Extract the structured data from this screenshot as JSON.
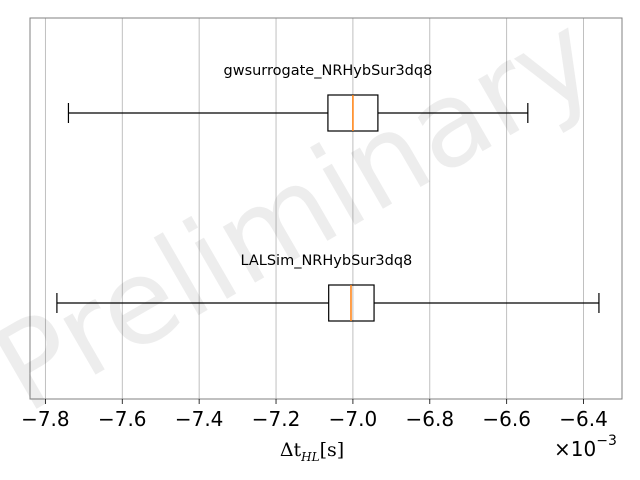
{
  "chart_data": {
    "type": "boxplot",
    "orientation": "horizontal",
    "series": [
      {
        "name": "gwsurrogate_NRHybSur3dq8",
        "whisker_low": -7.74,
        "q1": -7.065,
        "median": -7.0,
        "q3": -6.935,
        "whisker_high": -6.545
      },
      {
        "name": "LALSim_NRHybSur3dq8",
        "whisker_low": -7.77,
        "q1": -7.063,
        "median": -7.005,
        "q3": -6.945,
        "whisker_high": -6.36
      }
    ],
    "xlim": [
      -7.84,
      -6.3
    ],
    "xticks": [
      -7.8,
      -7.6,
      -7.4,
      -7.2,
      -7.0,
      -6.8,
      -6.6,
      -6.4
    ],
    "xtick_labels": [
      "−7.8",
      "−7.6",
      "−7.4",
      "−7.2",
      "−7.0",
      "−6.8",
      "−6.6",
      "−6.4"
    ],
    "xlabel": {
      "base": "Δt",
      "subscript": "HL",
      "unit": "[s]"
    },
    "offset_text": {
      "base": "×10",
      "exponent": "−3"
    },
    "grid": "vertical",
    "watermark": "Preliminary",
    "colors": {
      "box": "#000000",
      "median": "#ff7f0e",
      "grid": "#b0b0b0",
      "frame": "#808080"
    }
  }
}
